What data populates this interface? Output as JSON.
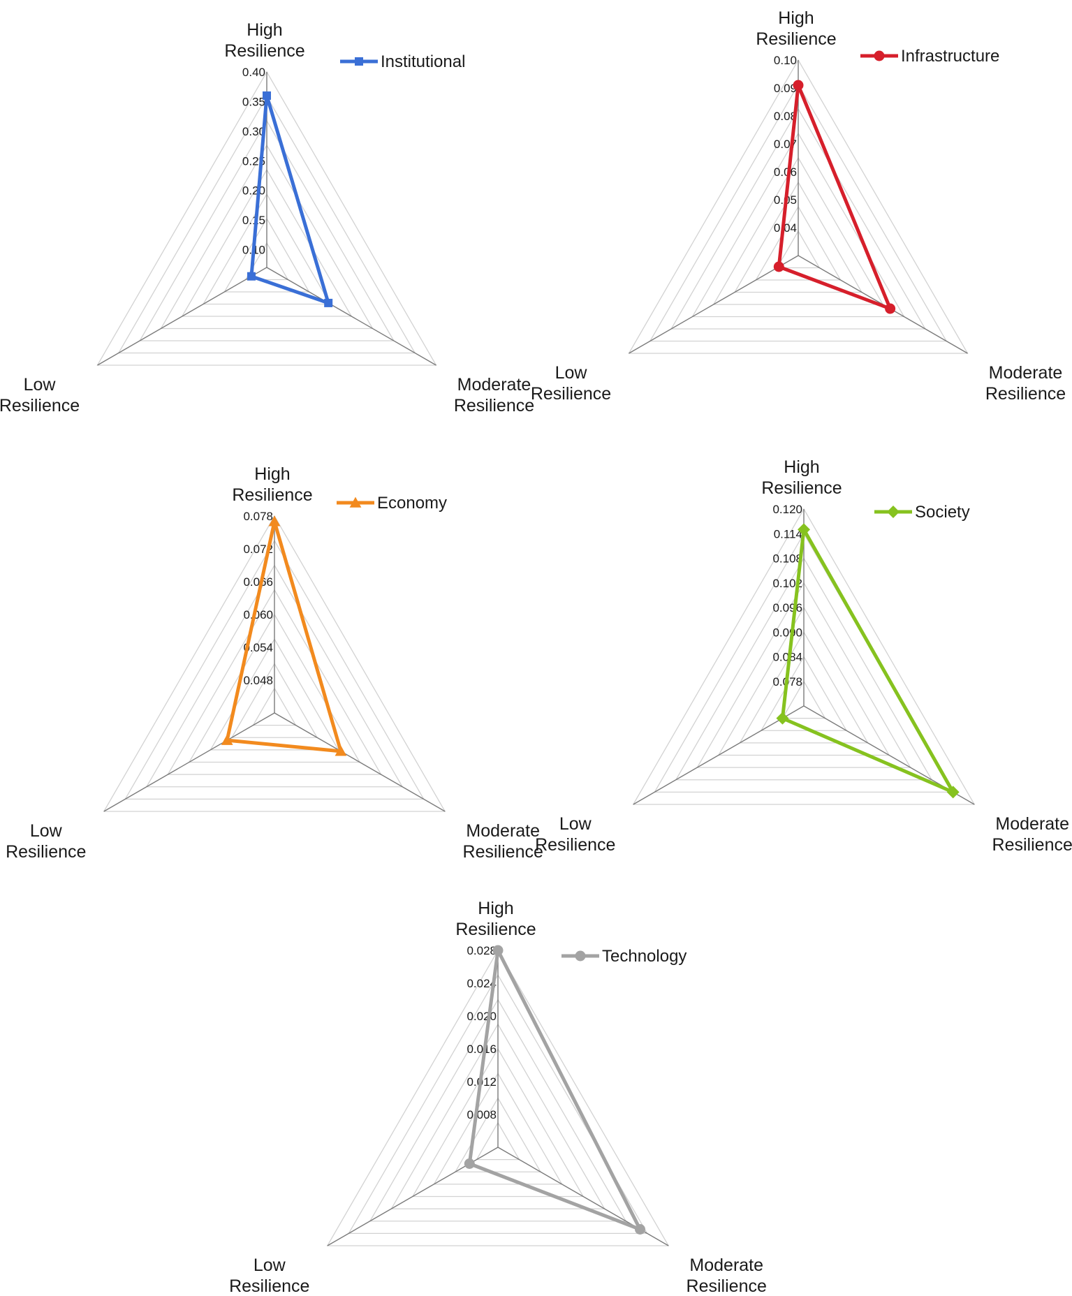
{
  "chart_data": [
    {
      "type": "radar",
      "categories": [
        "High Resilience",
        "Moderate Resilience",
        "Low Resilience"
      ],
      "series": [
        {
          "name": "Institutional",
          "values": [
            0.36,
            0.19,
            0.1
          ],
          "color": "#3a6fd6",
          "marker": "square"
        }
      ],
      "ticks": [
        "0.10",
        "0.15",
        "0.20",
        "0.25",
        "0.30",
        "0.35",
        "0.40"
      ],
      "range": [
        0.07,
        0.4
      ]
    },
    {
      "type": "radar",
      "categories": [
        "High Resilience",
        "Moderate Resilience",
        "Low Resilience"
      ],
      "series": [
        {
          "name": "Infrastructure",
          "values": [
            0.091,
            0.068,
            0.038
          ],
          "color": "#d61f2b",
          "marker": "circle"
        }
      ],
      "ticks": [
        "0.04",
        "0.05",
        "0.06",
        "0.07",
        "0.08",
        "0.09",
        "0.10"
      ],
      "range": [
        0.03,
        0.1
      ]
    },
    {
      "type": "radar",
      "categories": [
        "High Resilience",
        "Moderate Resilience",
        "Low Resilience"
      ],
      "series": [
        {
          "name": "Economy",
          "values": [
            0.077,
            0.056,
            0.052
          ],
          "color": "#f28a1e",
          "marker": "triangle"
        }
      ],
      "ticks": [
        "0.048",
        "0.054",
        "0.060",
        "0.066",
        "0.072",
        "0.078"
      ],
      "range": [
        0.042,
        0.078
      ]
    },
    {
      "type": "radar",
      "categories": [
        "High Resilience",
        "Moderate Resilience",
        "Low Resilience"
      ],
      "series": [
        {
          "name": "Society",
          "values": [
            0.115,
            0.114,
            0.078
          ],
          "color": "#86c21f",
          "marker": "diamond"
        }
      ],
      "ticks": [
        "0.078",
        "0.084",
        "0.090",
        "0.096",
        "0.102",
        "0.108",
        "0.114",
        "0.120"
      ],
      "range": [
        0.072,
        0.12
      ]
    },
    {
      "type": "radar",
      "categories": [
        "High Resilience",
        "Moderate Resilience",
        "Low Resilience"
      ],
      "series": [
        {
          "name": "Technology",
          "values": [
            0.028,
            0.024,
            0.008
          ],
          "color": "#a3a3a3",
          "marker": "circle"
        }
      ],
      "ticks": [
        "0.008",
        "0.012",
        "0.016",
        "0.020",
        "0.024",
        "0.028"
      ],
      "range": [
        0.004,
        0.028
      ]
    }
  ]
}
